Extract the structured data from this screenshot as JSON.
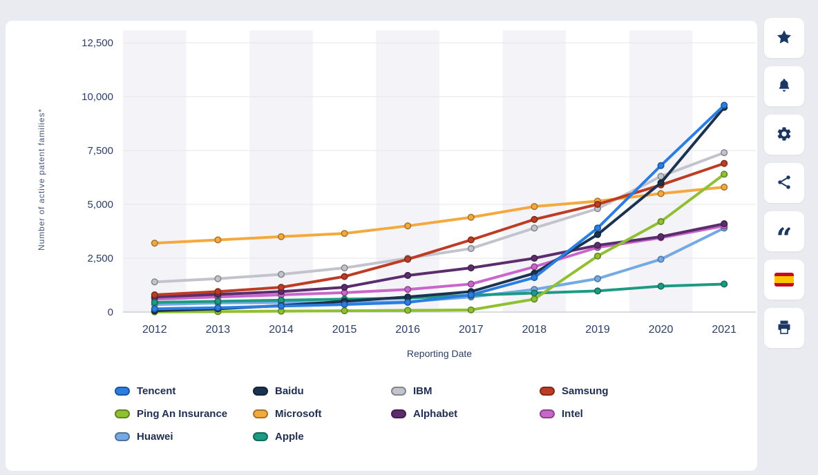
{
  "chart_data": {
    "type": "line",
    "title": "",
    "xlabel": "Reporting Date",
    "ylabel": "Number of active patent families*",
    "categories": [
      "2012",
      "2013",
      "2014",
      "2015",
      "2016",
      "2017",
      "2018",
      "2019",
      "2020",
      "2021"
    ],
    "ylim": [
      0,
      12500
    ],
    "yticks": [
      0,
      2500,
      5000,
      7500,
      10000,
      12500
    ],
    "ytick_labels": [
      "0",
      "2,500",
      "5,000",
      "7,500",
      "10,000",
      "12,500"
    ],
    "grid": "horizontal",
    "legend_position": "bottom",
    "series": [
      {
        "name": "Tencent",
        "color": "#2a7de1",
        "values": [
          150,
          200,
          280,
          350,
          450,
          800,
          1600,
          3900,
          6800,
          9600
        ]
      },
      {
        "name": "Baidu",
        "color": "#1b3350",
        "values": [
          60,
          150,
          300,
          500,
          700,
          950,
          1800,
          3600,
          6000,
          9500
        ]
      },
      {
        "name": "IBM",
        "color": "#c2c4cd",
        "values": [
          1400,
          1550,
          1750,
          2050,
          2500,
          2950,
          3900,
          4800,
          6300,
          7400
        ]
      },
      {
        "name": "Samsung",
        "color": "#bc3c24",
        "values": [
          800,
          950,
          1150,
          1650,
          2450,
          3350,
          4300,
          5000,
          5900,
          6900
        ]
      },
      {
        "name": "Ping An Insurance",
        "color": "#8fc032",
        "values": [
          10,
          20,
          40,
          60,
          80,
          100,
          600,
          2600,
          4200,
          6400
        ]
      },
      {
        "name": "Microsoft",
        "color": "#f3a93c",
        "values": [
          3200,
          3350,
          3500,
          3650,
          4000,
          4400,
          4900,
          5150,
          5500,
          5800
        ]
      },
      {
        "name": "Alphabet",
        "color": "#5c2d6e",
        "values": [
          700,
          820,
          950,
          1150,
          1700,
          2050,
          2500,
          3100,
          3500,
          4100
        ]
      },
      {
        "name": "Intel",
        "color": "#c966cb",
        "values": [
          600,
          700,
          800,
          900,
          1050,
          1300,
          2100,
          3000,
          3450,
          4000
        ]
      },
      {
        "name": "Huawei",
        "color": "#74a9e4",
        "values": [
          350,
          420,
          450,
          430,
          480,
          700,
          1050,
          1550,
          2450,
          3900
        ]
      },
      {
        "name": "Apple",
        "color": "#1d9a83",
        "values": [
          450,
          500,
          550,
          600,
          650,
          780,
          880,
          980,
          1200,
          1300
        ]
      }
    ]
  },
  "sidebar": {
    "buttons": [
      {
        "label": "favorite",
        "icon": "star-icon"
      },
      {
        "label": "notifications",
        "icon": "bell-icon"
      },
      {
        "label": "settings",
        "icon": "gear-icon"
      },
      {
        "label": "share",
        "icon": "share-icon"
      },
      {
        "label": "citation",
        "icon": "quote-icon"
      },
      {
        "label": "spanish-version",
        "icon": "spanish-flag-icon"
      },
      {
        "label": "print",
        "icon": "printer-icon"
      }
    ],
    "flag_colors": {
      "red": "#c60b1e",
      "yellow": "#ffc400"
    }
  },
  "theme": {
    "page_bg": "#e9ebf0",
    "card_bg": "#ffffff",
    "band_color": "#f4f4f8",
    "grid_color": "#e5e5eb",
    "axis_color": "#b3b8c2",
    "text_color": "#1e2d50",
    "icon_color": "#1b3864"
  }
}
